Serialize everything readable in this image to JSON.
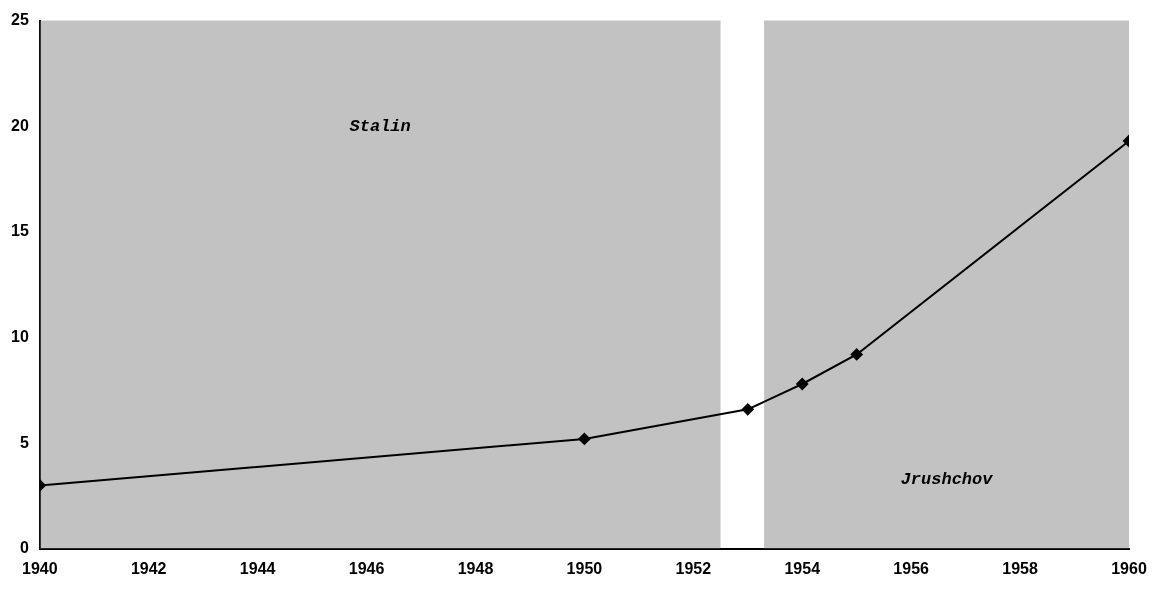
{
  "chart_data": {
    "type": "line",
    "x": [
      1940,
      1950,
      1953,
      1954,
      1955,
      1960
    ],
    "series": [
      {
        "color": "#000000",
        "values": [
          3.0,
          5.2,
          6.6,
          7.8,
          9.2,
          19.3
        ]
      }
    ],
    "xlim": [
      1940,
      1960
    ],
    "xticks": [
      1940,
      1942,
      1944,
      1946,
      1948,
      1950,
      1952,
      1954,
      1956,
      1958,
      1960
    ],
    "ylim": [
      0,
      25
    ],
    "yticks": [
      0,
      5,
      10,
      15,
      20,
      25
    ],
    "grid": false,
    "legend": false,
    "marker": "diamond",
    "line_style": "solid",
    "bands": [
      {
        "axis": "x",
        "from": 1940,
        "to": 1952.5,
        "label": "Stalin",
        "color": "#777777"
      },
      {
        "axis": "x",
        "from": 1953.3,
        "to": 1960,
        "label": "Jrushchov",
        "color": "#777777"
      }
    ]
  }
}
